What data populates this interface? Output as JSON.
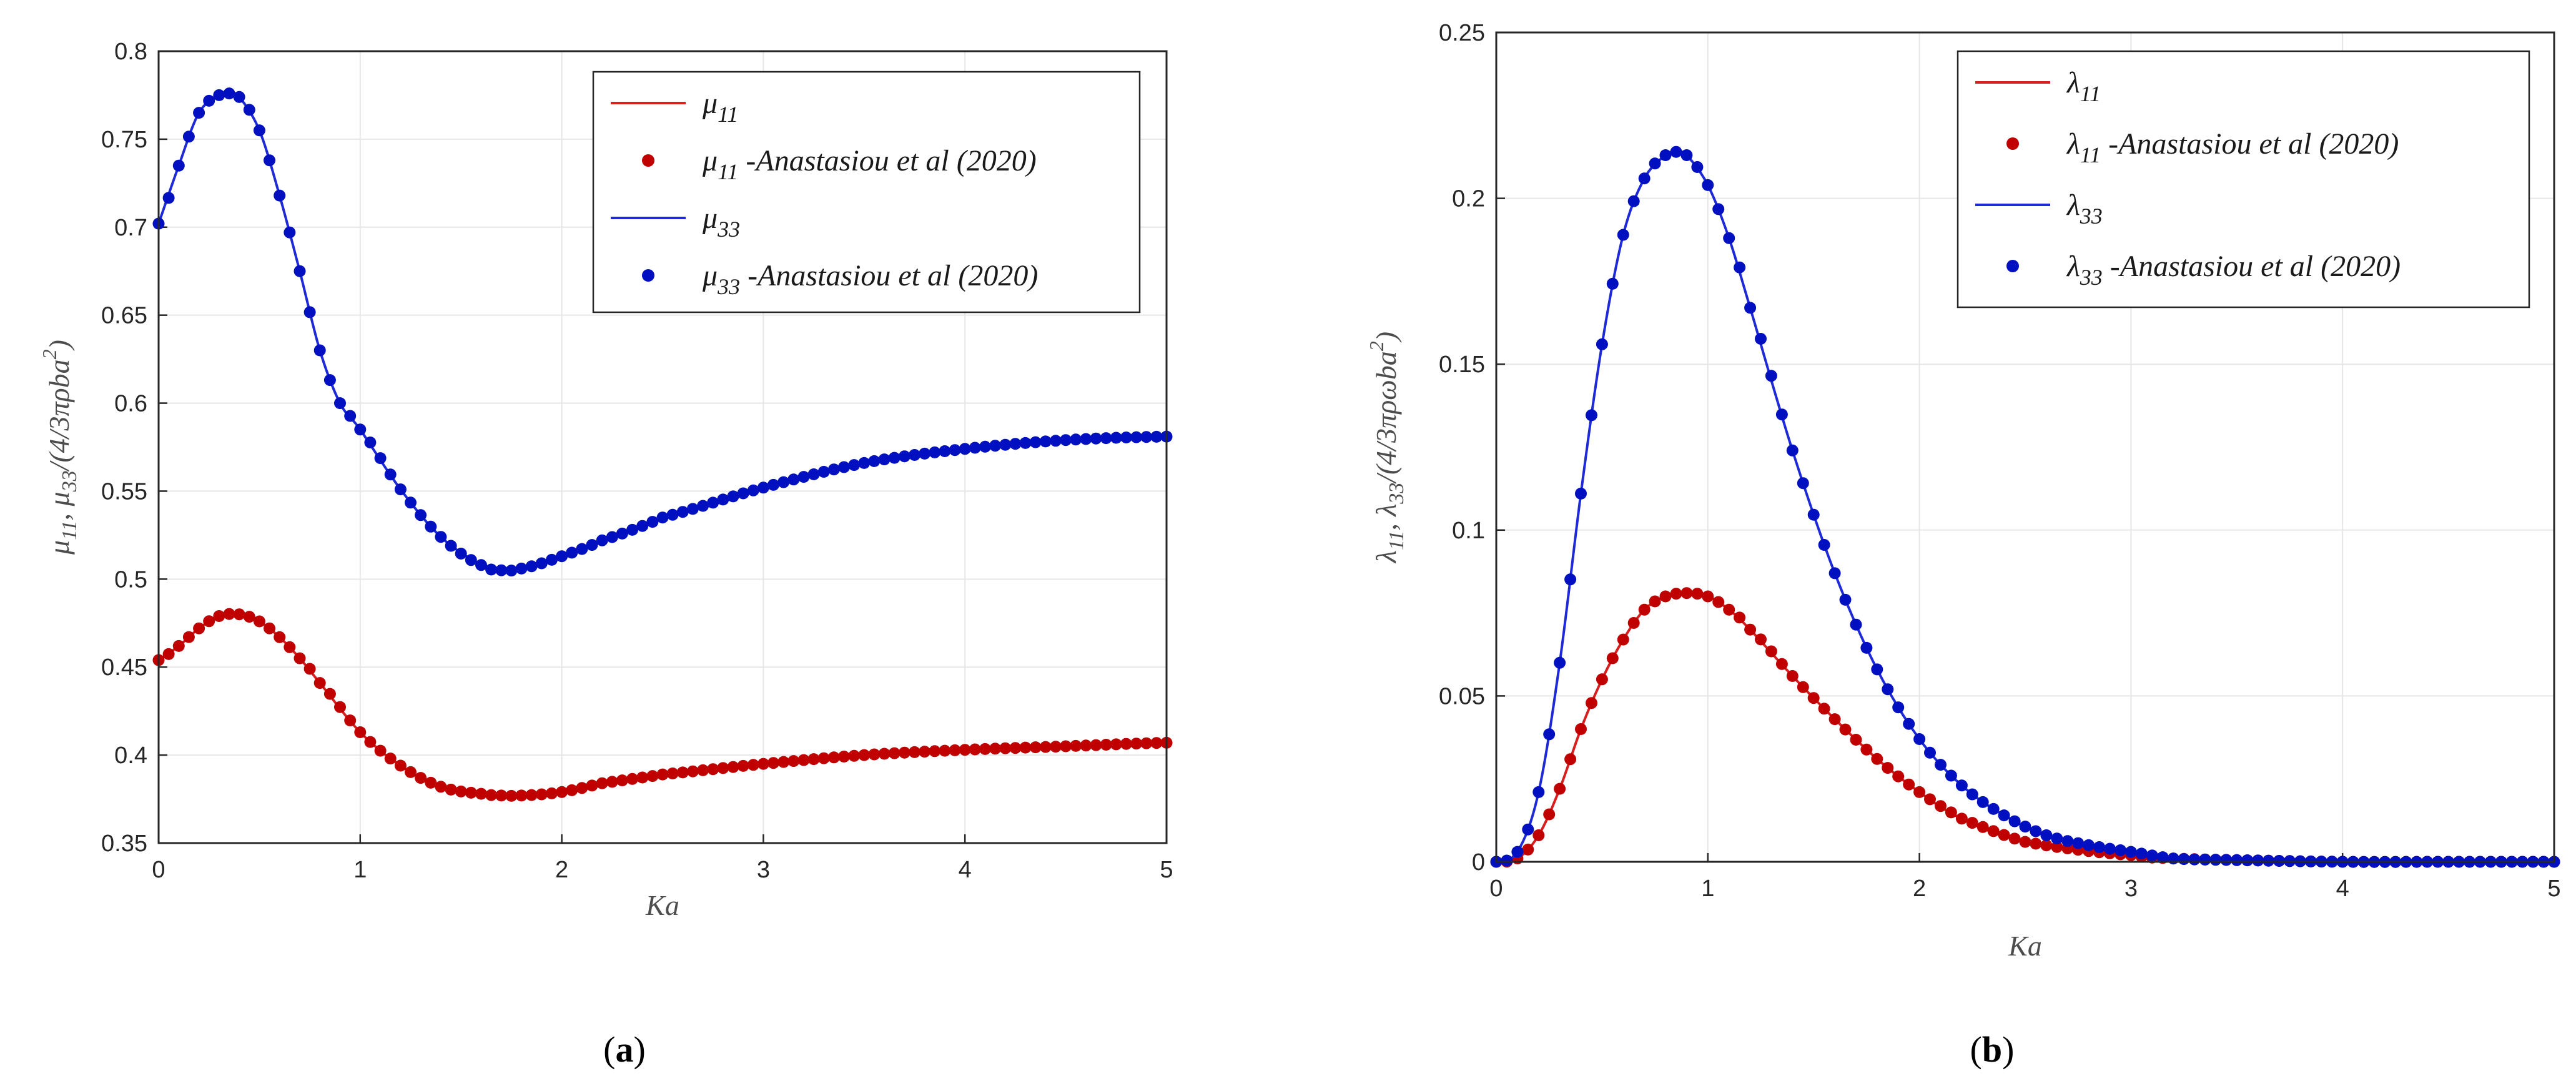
{
  "chart_data": [
    {
      "type": "line",
      "panel_caption": {
        "open": "(",
        "letter": "a",
        "close": ")"
      },
      "xlabel": "Ka",
      "ylabel": "μ11, μ33/(4/3πρba²)",
      "ylabel_parts": {
        "sym1": "μ",
        "sub1": "11",
        "sep": ", ",
        "sym2": "μ",
        "sub2": "33",
        "tail": "/(4/3",
        "pi": "π",
        "rest": "ρba",
        "sup": "2",
        "close": ")"
      },
      "xlim": [
        0,
        5
      ],
      "ylim": [
        0.35,
        0.8
      ],
      "xticks": [
        "0",
        "1",
        "2",
        "3",
        "4",
        "5"
      ],
      "yticks": [
        "0.35",
        "0.4",
        "0.45",
        "0.5",
        "0.55",
        "0.6",
        "0.65",
        "0.7",
        "0.75",
        "0.8"
      ],
      "grid": true,
      "legend_position": "top-right",
      "legend": [
        {
          "kind": "line",
          "color": "#d81e1e",
          "sym": "μ",
          "sub": "11",
          "text": ""
        },
        {
          "kind": "marker",
          "color": "#c00000",
          "sym": "μ",
          "sub": "11",
          "text": " -Anastasiou et al (2020)"
        },
        {
          "kind": "line",
          "color": "#1e2ad8",
          "sym": "μ",
          "sub": "33",
          "text": ""
        },
        {
          "kind": "marker",
          "color": "#0010c0",
          "sym": "μ",
          "sub": "33",
          "text": " -Anastasiou et al (2020)"
        }
      ],
      "series": [
        {
          "name": "μ11",
          "color": "#c00000",
          "x": [
            0,
            0.1,
            0.2,
            0.3,
            0.4,
            0.5,
            0.6,
            0.7,
            0.8,
            1.0,
            1.2,
            1.4,
            1.6,
            1.7,
            1.8,
            2.0,
            2.2,
            2.5,
            3.0,
            3.5,
            4.0,
            4.5,
            5.0
          ],
          "y": [
            0.454,
            0.462,
            0.472,
            0.479,
            0.48,
            0.476,
            0.467,
            0.455,
            0.441,
            0.413,
            0.394,
            0.382,
            0.378,
            0.377,
            0.377,
            0.379,
            0.384,
            0.389,
            0.395,
            0.4,
            0.403,
            0.405,
            0.407
          ]
        },
        {
          "name": "μ33",
          "color": "#0010c0",
          "x": [
            0,
            0.1,
            0.2,
            0.3,
            0.35,
            0.4,
            0.5,
            0.6,
            0.7,
            0.8,
            0.9,
            1.0,
            1.2,
            1.4,
            1.6,
            1.7,
            1.8,
            2.0,
            2.2,
            2.5,
            3.0,
            3.5,
            4.0,
            4.5,
            5.0
          ],
          "y": [
            0.702,
            0.735,
            0.765,
            0.775,
            0.776,
            0.774,
            0.755,
            0.718,
            0.675,
            0.63,
            0.6,
            0.585,
            0.551,
            0.524,
            0.508,
            0.505,
            0.506,
            0.513,
            0.522,
            0.535,
            0.552,
            0.566,
            0.574,
            0.579,
            0.581
          ]
        }
      ]
    },
    {
      "type": "line",
      "panel_caption": {
        "open": "(",
        "letter": "b",
        "close": ")"
      },
      "xlabel": "Ka",
      "ylabel": "λ11, λ33/(4/3πρωba²)",
      "ylabel_parts": {
        "sym1": "λ",
        "sub1": "11",
        "sep": ", ",
        "sym2": "λ",
        "sub2": "33",
        "tail": "/(4/3",
        "pi": "π",
        "rest": "ρωba",
        "sup": "2",
        "close": ")"
      },
      "xlim": [
        0,
        5
      ],
      "ylim": [
        0,
        0.25
      ],
      "xticks": [
        "0",
        "1",
        "2",
        "3",
        "4",
        "5"
      ],
      "yticks": [
        "0",
        "0.05",
        "0.1",
        "0.15",
        "0.2",
        "0.25"
      ],
      "grid": true,
      "legend_position": "top-right",
      "legend": [
        {
          "kind": "line",
          "color": "#d81e1e",
          "sym": "λ",
          "sub": "11",
          "text": ""
        },
        {
          "kind": "marker",
          "color": "#c00000",
          "sym": "λ",
          "sub": "11",
          "text": " -Anastasiou et al (2020)"
        },
        {
          "kind": "line",
          "color": "#1e2ad8",
          "sym": "λ",
          "sub": "33",
          "text": ""
        },
        {
          "kind": "marker",
          "color": "#0010c0",
          "sym": "λ",
          "sub": "33",
          "text": " -Anastasiou et al (2020)"
        }
      ],
      "series": [
        {
          "name": "λ11",
          "color": "#c00000",
          "x": [
            0,
            0.1,
            0.2,
            0.3,
            0.4,
            0.5,
            0.6,
            0.7,
            0.8,
            0.9,
            1.0,
            1.1,
            1.2,
            1.4,
            1.6,
            1.8,
            2.0,
            2.2,
            2.5,
            3.0,
            3.2,
            3.5,
            4.0,
            4.5,
            5.0
          ],
          "y": [
            0,
            0.001,
            0.008,
            0.022,
            0.04,
            0.055,
            0.067,
            0.076,
            0.08,
            0.081,
            0.08,
            0.076,
            0.07,
            0.056,
            0.043,
            0.031,
            0.021,
            0.013,
            0.006,
            0.002,
            0.001,
            0.0005,
            0,
            0,
            0
          ]
        },
        {
          "name": "λ33",
          "color": "#0010c0",
          "x": [
            0,
            0.1,
            0.2,
            0.3,
            0.4,
            0.5,
            0.6,
            0.7,
            0.8,
            0.85,
            0.9,
            1.0,
            1.1,
            1.2,
            1.4,
            1.6,
            1.8,
            2.0,
            2.2,
            2.4,
            2.6,
            2.8,
            3.0,
            3.2,
            3.5,
            4.0,
            4.5,
            5.0
          ],
          "y": [
            0,
            0.003,
            0.021,
            0.06,
            0.111,
            0.156,
            0.189,
            0.206,
            0.213,
            0.214,
            0.213,
            0.204,
            0.188,
            0.167,
            0.124,
            0.087,
            0.058,
            0.037,
            0.023,
            0.014,
            0.008,
            0.005,
            0.003,
            0.001,
            0.0005,
            0,
            0,
            0
          ]
        }
      ]
    }
  ]
}
